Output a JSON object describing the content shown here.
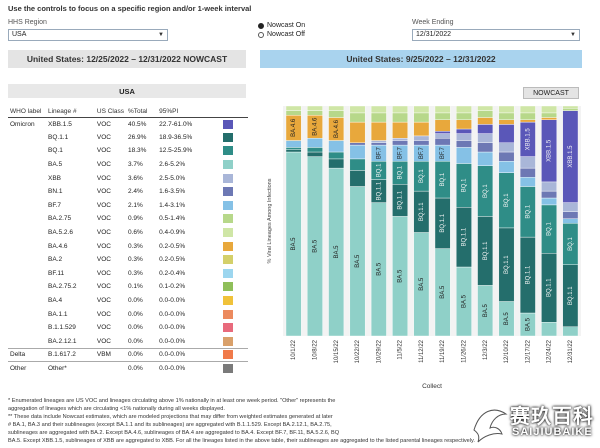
{
  "intro": "Use the controls to focus on a specific region and/or 1-week interval",
  "controls": {
    "region_label": "HHS Region",
    "region_value": "USA",
    "nowcast_on": "Nowcast On",
    "nowcast_off": "Nowcast Off",
    "week_label": "Week Ending",
    "week_value": "12/31/2022"
  },
  "banners": {
    "left": "United States: 12/25/2022 – 12/31/2022 NOWCAST",
    "right": "United States: 9/25/2022 – 12/31/2022"
  },
  "table": {
    "region_tab": "USA",
    "headers": [
      "WHO label",
      "Lineage #",
      "US Class",
      "%Total",
      "95%PI"
    ],
    "rows": [
      {
        "who": "Omicron",
        "lineage": "XBB.1.5",
        "cls": "VOC",
        "total": "40.5%",
        "pi": "22.7-61.0%",
        "color": "#5a57b8"
      },
      {
        "who": "",
        "lineage": "BQ.1.1",
        "cls": "VOC",
        "total": "26.9%",
        "pi": "18.9-36.5%",
        "color": "#246e6c"
      },
      {
        "who": "",
        "lineage": "BQ.1",
        "cls": "VOC",
        "total": "18.3%",
        "pi": "12.5-25.9%",
        "color": "#2f8d87"
      },
      {
        "who": "",
        "lineage": "BA.5",
        "cls": "VOC",
        "total": "3.7%",
        "pi": "2.6-5.2%",
        "color": "#8fd0c8"
      },
      {
        "who": "",
        "lineage": "XBB",
        "cls": "VOC",
        "total": "3.6%",
        "pi": "2.5-5.0%",
        "color": "#a9b6d8"
      },
      {
        "who": "",
        "lineage": "BN.1",
        "cls": "VOC",
        "total": "2.4%",
        "pi": "1.6-3.5%",
        "color": "#6d78b4"
      },
      {
        "who": "",
        "lineage": "BF.7",
        "cls": "VOC",
        "total": "2.1%",
        "pi": "1.4-3.1%",
        "color": "#85c1e6"
      },
      {
        "who": "",
        "lineage": "BA.2.75",
        "cls": "VOC",
        "total": "0.9%",
        "pi": "0.5-1.4%",
        "color": "#b7d88a"
      },
      {
        "who": "",
        "lineage": "BA.5.2.6",
        "cls": "VOC",
        "total": "0.6%",
        "pi": "0.4-0.9%",
        "color": "#cfe6a6"
      },
      {
        "who": "",
        "lineage": "BA.4.6",
        "cls": "VOC",
        "total": "0.3%",
        "pi": "0.2-0.5%",
        "color": "#e8a83c"
      },
      {
        "who": "",
        "lineage": "BA.2",
        "cls": "VOC",
        "total": "0.3%",
        "pi": "0.2-0.5%",
        "color": "#d4d06a"
      },
      {
        "who": "",
        "lineage": "BF.11",
        "cls": "VOC",
        "total": "0.3%",
        "pi": "0.2-0.4%",
        "color": "#9cd6ef"
      },
      {
        "who": "",
        "lineage": "BA.2.75.2",
        "cls": "VOC",
        "total": "0.1%",
        "pi": "0.1-0.2%",
        "color": "#8fbf5a"
      },
      {
        "who": "",
        "lineage": "BA.4",
        "cls": "VOC",
        "total": "0.0%",
        "pi": "0.0-0.0%",
        "color": "#f0c23a"
      },
      {
        "who": "",
        "lineage": "BA.1.1",
        "cls": "VOC",
        "total": "0.0%",
        "pi": "0.0-0.0%",
        "color": "#ec8a5e"
      },
      {
        "who": "",
        "lineage": "B.1.1.529",
        "cls": "VOC",
        "total": "0.0%",
        "pi": "0.0-0.0%",
        "color": "#e86a7c"
      },
      {
        "who": "",
        "lineage": "BA.2.12.1",
        "cls": "VOC",
        "total": "0.0%",
        "pi": "0.0-0.0%",
        "color": "#d9a06a"
      },
      {
        "who": "Delta",
        "lineage": "B.1.617.2",
        "cls": "VBM",
        "total": "0.0%",
        "pi": "0.0-0.0%",
        "color": "#f07a4a",
        "sep": true
      },
      {
        "who": "Other",
        "lineage": "Other*",
        "cls": "",
        "total": "0.0%",
        "pi": "0.0-0.0%",
        "color": "#7a7a7a",
        "sep": true
      }
    ]
  },
  "nowcast_button": "NOWCAST",
  "chart_data": {
    "type": "bar",
    "stacked": true,
    "ylabel": "% Viral Lineages Among Infections",
    "xlabel": "Collect",
    "ylim": [
      0,
      100
    ],
    "categories": [
      "10/1/22",
      "10/8/22",
      "10/15/22",
      "10/22/22",
      "10/29/22",
      "11/5/22",
      "11/12/22",
      "11/19/22",
      "11/26/22",
      "12/3/22",
      "12/10/22",
      "12/17/22",
      "12/24/22",
      "12/31/22"
    ],
    "series": [
      {
        "name": "BA.5",
        "color": "#8fd0c8",
        "values": [
          80,
          78,
          73,
          65,
          58,
          52,
          45,
          38,
          30,
          22,
          15,
          10,
          6,
          4
        ],
        "labels": [
          "BA.5",
          "BA.5",
          "BA.5",
          "BA.5",
          "BA.5",
          "BA.5",
          "BA.5",
          "BA.5",
          "BA.5",
          "BA.5",
          "BA.5",
          "BA.5",
          "",
          ""
        ]
      },
      {
        "name": "BQ.1.1",
        "color": "#246e6c",
        "values": [
          1,
          2,
          4,
          7,
          10,
          14,
          18,
          22,
          26,
          30,
          32,
          33,
          30,
          27
        ],
        "labels": [
          "",
          "",
          "",
          "",
          "BQ.1.1",
          "BQ.1.1",
          "BQ.1.1",
          "BQ.1.1",
          "BQ.1.1",
          "BQ.1.1",
          "BQ.1.1",
          "BQ.1.1",
          "BQ.1.1",
          "BQ.1.1"
        ]
      },
      {
        "name": "BQ.1",
        "color": "#2f8d87",
        "values": [
          1,
          2,
          3,
          5,
          8,
          10,
          13,
          16,
          19,
          22,
          24,
          22,
          21,
          18
        ],
        "labels": [
          "",
          "",
          "",
          "",
          "BQ.1",
          "BQ.1",
          "BQ.1",
          "BQ.1",
          "BQ.1",
          "BQ.1",
          "BQ.1",
          "BQ.1",
          "BQ.1",
          "BQ.1"
        ]
      },
      {
        "name": "BF.7",
        "color": "#85c1e6",
        "values": [
          3,
          4,
          5,
          6,
          7,
          7,
          7,
          7,
          7,
          6,
          5,
          4,
          3,
          2
        ],
        "labels": [
          "",
          "",
          "",
          "BF.7",
          "BF.7",
          "BF.7",
          "BF.7",
          "BF.7",
          "",
          "",
          "",
          "",
          "",
          ""
        ]
      },
      {
        "name": "BN.1",
        "color": "#6d78b4",
        "values": [
          0,
          0,
          0,
          1,
          1,
          2,
          2,
          3,
          3,
          4,
          4,
          4,
          3,
          3
        ],
        "labels": [
          "",
          "",
          "",
          "",
          "",
          "",
          "",
          "",
          "",
          "",
          "",
          "",
          "",
          ""
        ]
      },
      {
        "name": "XBB",
        "color": "#a9b6d8",
        "values": [
          0,
          0,
          0,
          0,
          1,
          1,
          2,
          2,
          3,
          4,
          4,
          5,
          4,
          4
        ],
        "labels": [
          "",
          "",
          "",
          "",
          "",
          "",
          "",
          "",
          "",
          "",
          "",
          "",
          "",
          ""
        ]
      },
      {
        "name": "XBB.1.5",
        "color": "#5a57b8",
        "values": [
          0,
          0,
          0,
          0,
          0,
          0,
          0,
          1,
          2,
          4,
          8,
          15,
          27,
          40
        ],
        "labels": [
          "",
          "",
          "",
          "",
          "",
          "",
          "",
          "",
          "",
          "",
          "",
          "XBB.1.5",
          "XBB.1.5",
          "XBB.1.5"
        ]
      },
      {
        "name": "BA.4.6",
        "color": "#e8a83c",
        "values": [
          11,
          10,
          10,
          9,
          8,
          7,
          6,
          5,
          4,
          3,
          2,
          1,
          1,
          0
        ],
        "labels": [
          "BA.4.6",
          "BA.4.6",
          "BA.4.6",
          "",
          "",
          "",
          "",
          "",
          "",
          "",
          "",
          "",
          "",
          ""
        ]
      },
      {
        "name": "BA.2.75",
        "color": "#b7d88a",
        "values": [
          2,
          2,
          3,
          4,
          4,
          4,
          4,
          3,
          3,
          3,
          3,
          3,
          2,
          1
        ],
        "labels": [
          "",
          "",
          "",
          "",
          "",
          "",
          "",
          "",
          "",
          "",
          "",
          "",
          "",
          ""
        ]
      },
      {
        "name": "Other",
        "color": "#cfe6a6",
        "values": [
          2,
          2,
          2,
          3,
          3,
          3,
          3,
          3,
          3,
          2,
          3,
          3,
          3,
          1
        ],
        "labels": [
          "",
          "",
          "",
          "",
          "",
          "",
          "",
          "",
          "",
          "",
          "",
          "",
          "",
          ""
        ]
      }
    ]
  },
  "footnotes": [
    "*    Enumerated lineages are US VOC and lineages circulating above 1% nationally in at least one week period. \"Other\" represents the",
    "     aggregation of lineages which are circulating <1% nationally during all weeks displayed.",
    "**   These data include Nowcast estimates, which are modeled projections that may differ from weighted estimates generated at later",
    "#    BA.1, BA.3 and their sublineages (except BA.1.1 and its sublineages) are aggregated with B.1.1.529. Except BA.2.12.1, BA.2.75,",
    "sublineages are aggregated with BA.2. Except BA.4.6, sublineages of BA.4 are aggregated to BA.4. Except BF.7, BF.11, BA.5.2.6, BQ",
    "BA.5. Except XBB.1.5, sublineages of XBB are aggregated to XBB. For all the lineages listed in the above table, their sublineages are aggregated to the listed parental lineages respectively."
  ],
  "watermark": {
    "cn": "赛玖百科",
    "en": "SAIJIUBAIKE"
  }
}
